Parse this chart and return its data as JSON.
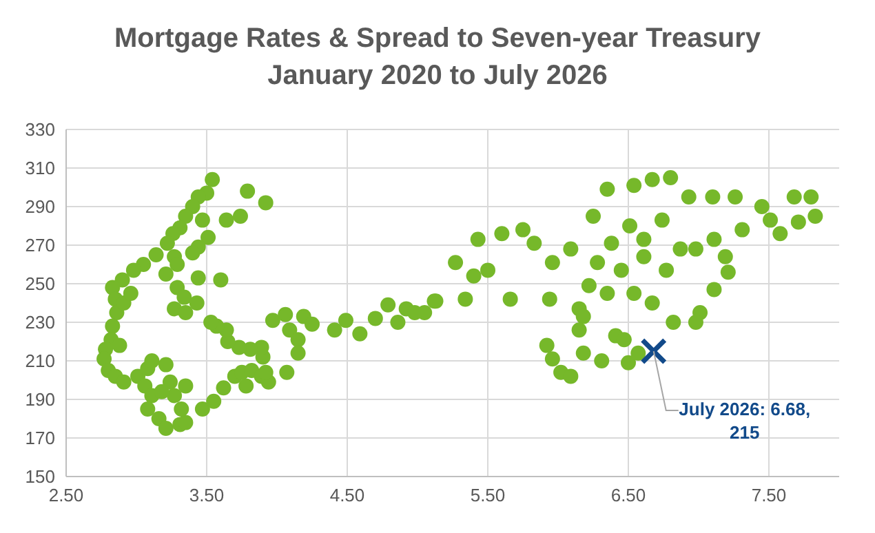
{
  "chart_data": {
    "type": "scatter",
    "title": "Mortgage Rates & Spread to Seven-year Treasury",
    "subtitle": "January 2020 to July 2026",
    "xlim": [
      2.5,
      8.0
    ],
    "xticks": [
      {
        "value": 2.5,
        "label": "2.50"
      },
      {
        "value": 3.5,
        "label": "3.50"
      },
      {
        "value": 4.5,
        "label": "4.50"
      },
      {
        "value": 5.5,
        "label": "5.50"
      },
      {
        "value": 6.5,
        "label": "6.50"
      },
      {
        "value": 7.5,
        "label": "7.50"
      }
    ],
    "ylim": [
      150,
      330
    ],
    "yticks": [
      150,
      170,
      190,
      210,
      230,
      250,
      270,
      290,
      310,
      330
    ],
    "grid": true,
    "series": [
      {
        "color": "#76b82a",
        "marker": "circle",
        "x": [
          3.54,
          3.5,
          3.44,
          3.4,
          3.35,
          3.31,
          3.26,
          3.22,
          3.14,
          3.05,
          2.98,
          2.9,
          2.83,
          2.85,
          2.86,
          2.83,
          2.82,
          2.78,
          2.77,
          2.8,
          2.85,
          2.91,
          3.01,
          3.08,
          3.11,
          3.06,
          3.11,
          3.08,
          3.16,
          3.21,
          3.31,
          3.35,
          3.32,
          3.27,
          3.35,
          3.24,
          3.18,
          3.21,
          2.88,
          2.91,
          2.96,
          3.47,
          3.55,
          3.62,
          3.7,
          3.78,
          3.75,
          3.82,
          3.89,
          3.94,
          3.92,
          3.9,
          3.89,
          3.81,
          3.73,
          3.65,
          3.64,
          3.57,
          3.53,
          3.47,
          3.51,
          3.44,
          3.4,
          3.27,
          3.21,
          3.29,
          3.64,
          3.74,
          3.79,
          3.92,
          3.6,
          3.44,
          3.29,
          3.34,
          3.43,
          3.27,
          3.35,
          3.97,
          4.06,
          4.19,
          4.09,
          4.15,
          4.15,
          4.07,
          4.25,
          4.41,
          4.49,
          4.59,
          4.7,
          4.79,
          4.86,
          4.92,
          5.05,
          5.12,
          4.98,
          5.13,
          5.27,
          5.43,
          5.4,
          5.34,
          5.5,
          5.6,
          5.66,
          5.75,
          5.83,
          5.94,
          5.96,
          6.09,
          6.15,
          6.22,
          6.25,
          6.35,
          6.54,
          6.67,
          6.8,
          6.93,
          7.1,
          7.26,
          7.45,
          7.58,
          7.68,
          7.8,
          7.83,
          7.71,
          7.51,
          7.31,
          7.11,
          6.98,
          7.19,
          7.21,
          7.11,
          7.01,
          6.82,
          6.67,
          6.54,
          6.45,
          6.61,
          6.77,
          6.87,
          6.74,
          6.51,
          6.38,
          6.28,
          6.35,
          6.18,
          6.15,
          5.92,
          5.96,
          6.02,
          6.09,
          6.18,
          6.31,
          6.41,
          6.5,
          6.57,
          6.47,
          6.98,
          6.61
        ],
        "values": [
          304,
          297,
          295,
          290,
          285,
          279,
          276,
          271,
          265,
          260,
          257,
          252,
          248,
          242,
          235,
          228,
          221,
          216,
          211,
          205,
          202,
          199,
          202,
          206,
          210,
          197,
          192,
          185,
          180,
          175,
          177,
          178,
          185,
          192,
          197,
          199,
          194,
          208,
          218,
          240,
          245,
          185,
          189,
          196,
          202,
          197,
          204,
          205,
          202,
          199,
          204,
          212,
          217,
          216,
          217,
          220,
          226,
          228,
          230,
          283,
          274,
          269,
          266,
          264,
          255,
          260,
          283,
          285,
          298,
          292,
          252,
          253,
          248,
          243,
          240,
          237,
          235,
          231,
          234,
          233,
          226,
          221,
          214,
          204,
          229,
          226,
          231,
          224,
          232,
          239,
          230,
          237,
          235,
          241,
          235,
          241,
          261,
          273,
          254,
          242,
          257,
          276,
          242,
          278,
          271,
          242,
          261,
          268,
          237,
          249,
          285,
          299,
          301,
          304,
          305,
          295,
          295,
          295,
          290,
          276,
          295,
          295,
          285,
          282,
          283,
          278,
          273,
          268,
          264,
          256,
          247,
          235,
          230,
          240,
          245,
          257,
          264,
          257,
          268,
          283,
          280,
          271,
          261,
          245,
          233,
          226,
          218,
          211,
          204,
          202,
          214,
          210,
          223,
          209,
          214,
          221,
          230,
          273
        ]
      },
      {
        "color": "#124a8a",
        "marker": "cross",
        "x": [
          6.68
        ],
        "values": [
          215
        ]
      }
    ],
    "annotations": [
      {
        "text": "July 2026: 6.68, 215",
        "x": 6.68,
        "y": 215
      }
    ]
  }
}
